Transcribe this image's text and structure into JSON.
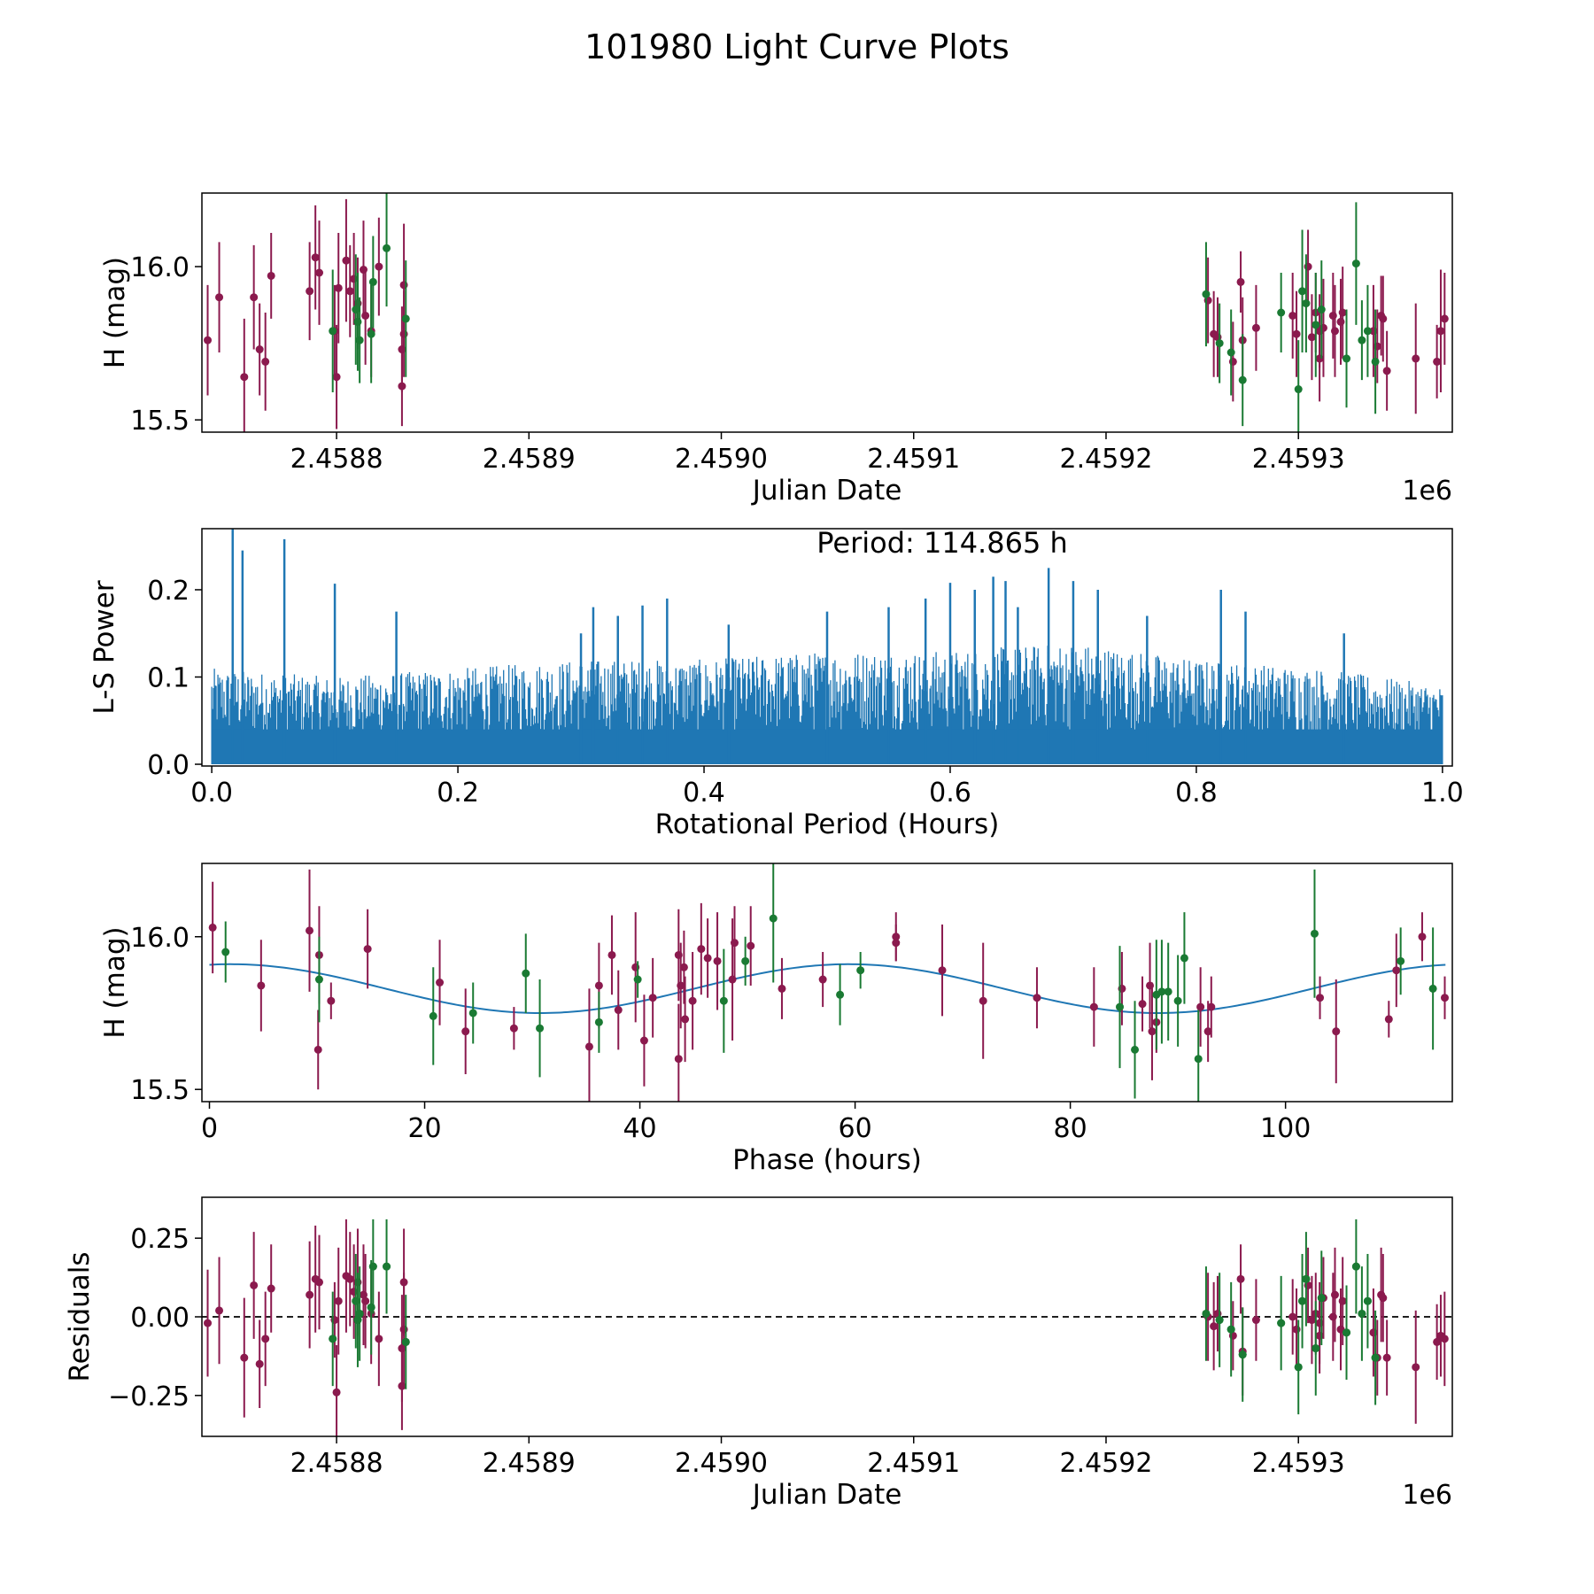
{
  "figure_title": "101980 Light Curve Plots",
  "colors": {
    "series_a": "#8b1a4e",
    "series_b": "#1a7a33",
    "periodogram": "#1f77b4",
    "fit": "#1f77b4"
  },
  "chart_data": [
    {
      "id": "lightcurve",
      "type": "scatter",
      "xlabel": "Julian Date",
      "ylabel": "H (mag)",
      "offset_label": "1e6",
      "xlim": [
        2.45873,
        2.45938
      ],
      "ylim": [
        15.46,
        16.24
      ],
      "xticks": [
        2.4588,
        2.4589,
        2.459,
        2.4591,
        2.4592,
        2.4593
      ],
      "xtick_labels": [
        "2.4588",
        "2.4589",
        "2.4590",
        "2.4591",
        "2.4592",
        "2.4593"
      ],
      "yticks": [
        15.5,
        16.0
      ],
      "ytick_labels": [
        "15.5",
        "16.0"
      ],
      "series": [
        {
          "name": "purple observations",
          "color_key": "series_a",
          "x": [
            2.458733,
            2.458739,
            2.458752,
            2.458757,
            2.45876,
            2.458763,
            2.458766,
            2.458786,
            2.458789,
            2.458791,
            2.458799,
            2.4588,
            2.458801,
            2.458805,
            2.458807,
            2.458809,
            2.458811,
            2.458814,
            2.458815,
            2.458818,
            2.458822,
            2.458834,
            2.458834,
            2.458835,
            2.458835,
            2.459253,
            2.459256,
            2.459258,
            2.459266,
            2.45927,
            2.459271,
            2.459278,
            2.459297,
            2.459299,
            2.459305,
            2.459307,
            2.459309,
            2.459311,
            2.459311,
            2.459313,
            2.459318,
            2.459319,
            2.459322,
            2.459323,
            2.459339,
            2.459341,
            2.459343,
            2.459344,
            2.459346,
            2.459361,
            2.459372,
            2.459374,
            2.459376
          ],
          "y": [
            15.76,
            15.9,
            15.64,
            15.9,
            15.73,
            15.69,
            15.97,
            15.92,
            16.03,
            15.98,
            15.79,
            15.64,
            15.93,
            16.02,
            15.92,
            15.96,
            15.88,
            15.99,
            15.84,
            15.79,
            16.0,
            15.73,
            15.61,
            15.78,
            15.94,
            15.89,
            15.78,
            15.77,
            15.69,
            15.95,
            15.76,
            15.8,
            15.84,
            15.78,
            16.0,
            15.77,
            15.85,
            15.7,
            15.79,
            15.8,
            15.84,
            15.79,
            15.82,
            15.85,
            15.79,
            15.74,
            15.84,
            15.83,
            15.66,
            15.7,
            15.69,
            15.79,
            15.83
          ],
          "err": [
            0.18,
            0.18,
            0.19,
            0.17,
            0.15,
            0.16,
            0.14,
            0.16,
            0.17,
            0.17,
            0.15,
            0.17,
            0.18,
            0.2,
            0.15,
            0.15,
            0.15,
            0.16,
            0.16,
            0.15,
            0.16,
            0.14,
            0.13,
            0.14,
            0.2,
            0.14,
            0.14,
            0.13,
            0.13,
            0.1,
            0.14,
            0.14,
            0.14,
            0.14,
            0.12,
            0.14,
            0.13,
            0.14,
            0.12,
            0.16,
            0.14,
            0.15,
            0.14,
            0.15,
            0.15,
            0.12,
            0.13,
            0.14,
            0.13,
            0.18,
            0.12,
            0.2,
            0.15
          ]
        },
        {
          "name": "green observations",
          "color_key": "series_b",
          "x": [
            2.458798,
            2.45881,
            2.458811,
            2.458812,
            2.458818,
            2.458819,
            2.458826,
            2.458836,
            2.459252,
            2.459259,
            2.459265,
            2.459271,
            2.459291,
            2.4593,
            2.459302,
            2.459304,
            2.459309,
            2.459312,
            2.459325,
            2.45933,
            2.459333,
            2.459336,
            2.45934
          ],
          "y": [
            15.79,
            15.86,
            15.82,
            15.76,
            15.78,
            15.95,
            16.06,
            15.83,
            15.91,
            15.75,
            15.72,
            15.63,
            15.85,
            15.6,
            15.92,
            15.88,
            15.81,
            15.86,
            15.7,
            16.01,
            15.76,
            15.79,
            15.69
          ],
          "err": [
            0.2,
            0.18,
            0.16,
            0.14,
            0.16,
            0.15,
            0.19,
            0.19,
            0.17,
            0.13,
            0.14,
            0.15,
            0.13,
            0.16,
            0.2,
            0.16,
            0.17,
            0.16,
            0.16,
            0.2,
            0.13,
            0.15,
            0.17
          ]
        }
      ]
    },
    {
      "id": "periodogram",
      "type": "line",
      "xlabel": "Rotational Period (Hours)",
      "ylabel": "L-S Power",
      "annotation": "Period: 114.865 h",
      "xlim": [
        -0.008,
        1.008
      ],
      "ylim": [
        -0.002,
        0.27
      ],
      "xticks": [
        0.0,
        0.2,
        0.4,
        0.6,
        0.8,
        1.0
      ],
      "xtick_labels": [
        "0.0",
        "0.2",
        "0.4",
        "0.6",
        "0.8",
        "1.0"
      ],
      "yticks": [
        0.0,
        0.1,
        0.2
      ],
      "ytick_labels": [
        "0.0",
        "0.1",
        "0.2"
      ],
      "noise_envelope": {
        "x": [
          0.0,
          0.1,
          0.2,
          0.3,
          0.4,
          0.5,
          0.6,
          0.7,
          0.8,
          0.9,
          1.0
        ],
        "y": [
          0.11,
          0.1,
          0.11,
          0.12,
          0.12,
          0.13,
          0.13,
          0.14,
          0.12,
          0.11,
          0.09
        ]
      },
      "peaks": {
        "x": [
          0.017,
          0.025,
          0.059,
          0.1,
          0.15,
          0.3,
          0.31,
          0.33,
          0.35,
          0.37,
          0.42,
          0.5,
          0.55,
          0.58,
          0.6,
          0.62,
          0.635,
          0.645,
          0.655,
          0.68,
          0.7,
          0.72,
          0.76,
          0.82,
          0.84,
          0.92
        ],
        "y": [
          0.27,
          0.245,
          0.258,
          0.207,
          0.175,
          0.15,
          0.18,
          0.17,
          0.182,
          0.19,
          0.16,
          0.175,
          0.18,
          0.19,
          0.208,
          0.2,
          0.215,
          0.21,
          0.18,
          0.225,
          0.21,
          0.2,
          0.17,
          0.2,
          0.175,
          0.15
        ]
      }
    },
    {
      "id": "phased",
      "type": "scatter",
      "xlabel": "Phase (hours)",
      "ylabel": "H (mag)",
      "xlim": [
        -0.7,
        115.5
      ],
      "ylim": [
        15.46,
        16.24
      ],
      "xticks": [
        0,
        20,
        40,
        60,
        80,
        100
      ],
      "xtick_labels": [
        "0",
        "20",
        "40",
        "60",
        "80",
        "100"
      ],
      "yticks": [
        15.5,
        16.0
      ],
      "ytick_labels": [
        "15.5",
        "16.0"
      ],
      "fit": {
        "mean": 15.83,
        "amplitude": 0.08,
        "period": 57.43,
        "phase_offset": 2.0,
        "x_end": 114.865
      },
      "series": [
        {
          "name": "purple observations",
          "color_key": "series_a",
          "x": [
            0.3,
            4.8,
            9.3,
            10.1,
            10.2,
            11.3,
            14.7,
            21.4,
            23.8,
            28.3,
            35.3,
            36.2,
            37.4,
            38.0,
            39.6,
            40.4,
            41.2,
            43.6,
            43.6,
            43.8,
            44.1,
            44.2,
            44.9,
            45.7,
            46.3,
            47.2,
            48.6,
            48.8,
            50.3,
            53.2,
            57.0,
            63.8,
            63.8,
            68.1,
            71.9,
            76.9,
            82.2,
            84.8,
            86.7,
            87.4,
            87.6,
            88.0,
            92.1,
            92.8,
            93.1,
            103.2,
            104.7,
            109.6,
            110.3,
            112.7,
            114.8
          ],
          "y": [
            16.03,
            15.84,
            16.02,
            15.63,
            15.94,
            15.79,
            15.96,
            15.85,
            15.69,
            15.7,
            15.64,
            15.84,
            15.94,
            15.76,
            15.9,
            15.66,
            15.8,
            15.6,
            15.94,
            15.84,
            15.9,
            15.73,
            15.79,
            15.96,
            15.93,
            15.92,
            15.86,
            15.98,
            15.97,
            15.83,
            15.86,
            16.0,
            15.98,
            15.89,
            15.79,
            15.8,
            15.77,
            15.83,
            15.78,
            15.84,
            15.69,
            15.72,
            15.77,
            15.69,
            15.77,
            15.8,
            15.69,
            15.73,
            15.89,
            16.0,
            15.8
          ],
          "err": [
            0.15,
            0.15,
            0.2,
            0.13,
            0.16,
            0.06,
            0.13,
            0.14,
            0.14,
            0.07,
            0.19,
            0.14,
            0.13,
            0.13,
            0.18,
            0.15,
            0.13,
            0.18,
            0.15,
            0.14,
            0.12,
            0.14,
            0.16,
            0.15,
            0.13,
            0.16,
            0.2,
            0.12,
            0.13,
            0.1,
            0.09,
            0.08,
            0.06,
            0.15,
            0.19,
            0.1,
            0.13,
            0.12,
            0.09,
            0.14,
            0.16,
            0.1,
            0.13,
            0.1,
            0.1,
            0.07,
            0.17,
            0.06,
            0.12,
            0.08,
            0.07
          ]
        },
        {
          "name": "green observations",
          "color_key": "series_b",
          "x": [
            1.5,
            10.2,
            20.8,
            24.5,
            29.4,
            30.7,
            36.2,
            39.8,
            47.8,
            49.8,
            52.4,
            58.6,
            60.5,
            84.6,
            86.0,
            88.0,
            88.5,
            89.1,
            90.0,
            90.6,
            91.9,
            102.7,
            110.7,
            113.7
          ],
          "y": [
            15.95,
            15.86,
            15.74,
            15.75,
            15.88,
            15.7,
            15.72,
            15.86,
            15.79,
            15.92,
            16.06,
            15.81,
            15.89,
            15.77,
            15.63,
            15.81,
            15.82,
            15.82,
            15.79,
            15.93,
            15.6,
            16.01,
            15.92,
            15.83
          ],
          "err": [
            0.1,
            0.14,
            0.16,
            0.1,
            0.13,
            0.16,
            0.1,
            0.06,
            0.17,
            0.08,
            0.21,
            0.1,
            0.06,
            0.2,
            0.16,
            0.18,
            0.17,
            0.16,
            0.15,
            0.15,
            0.16,
            0.21,
            0.11,
            0.2
          ]
        }
      ]
    },
    {
      "id": "residuals",
      "type": "scatter",
      "xlabel": "Julian Date",
      "ylabel": "Residuals",
      "offset_label": "1e6",
      "xlim": [
        2.45873,
        2.45938
      ],
      "ylim": [
        -0.38,
        0.38
      ],
      "xticks": [
        2.4588,
        2.4589,
        2.459,
        2.4591,
        2.4592,
        2.4593
      ],
      "xtick_labels": [
        "2.4588",
        "2.4589",
        "2.4590",
        "2.4591",
        "2.4592",
        "2.4593"
      ],
      "yticks": [
        -0.25,
        0.0,
        0.25
      ],
      "ytick_labels": [
        "−0.25",
        "0.00",
        "0.25"
      ],
      "zero_line": 0.0,
      "series": [
        {
          "name": "purple residuals",
          "color_key": "series_a",
          "x": [
            2.458733,
            2.458739,
            2.458752,
            2.458757,
            2.45876,
            2.458763,
            2.458766,
            2.458786,
            2.458789,
            2.458791,
            2.458799,
            2.4588,
            2.458801,
            2.458805,
            2.458807,
            2.458809,
            2.458811,
            2.458814,
            2.458815,
            2.458818,
            2.458822,
            2.458834,
            2.458834,
            2.458835,
            2.458835,
            2.459253,
            2.459256,
            2.459258,
            2.459266,
            2.45927,
            2.459271,
            2.459278,
            2.459297,
            2.459299,
            2.459305,
            2.459307,
            2.459309,
            2.459311,
            2.459311,
            2.459313,
            2.459318,
            2.459319,
            2.459322,
            2.459323,
            2.459339,
            2.459341,
            2.459343,
            2.459344,
            2.459346,
            2.459361,
            2.459372,
            2.459374,
            2.459376
          ],
          "y": [
            -0.02,
            0.02,
            -0.13,
            0.1,
            -0.15,
            -0.07,
            0.09,
            0.07,
            0.12,
            0.11,
            -0.01,
            -0.24,
            0.05,
            0.13,
            0.12,
            0.08,
            0.11,
            0.07,
            0.05,
            0.01,
            -0.07,
            -0.1,
            -0.22,
            0.11,
            -0.04,
            0.0,
            -0.03,
            0.01,
            -0.06,
            0.12,
            -0.11,
            -0.01,
            0.0,
            -0.04,
            0.1,
            -0.01,
            0.01,
            -0.02,
            -0.06,
            0.06,
            0.0,
            0.07,
            -0.04,
            0.05,
            -0.05,
            -0.13,
            0.07,
            0.06,
            -0.13,
            -0.16,
            -0.08,
            -0.06,
            -0.07
          ],
          "err": [
            0.17,
            0.17,
            0.19,
            0.17,
            0.14,
            0.15,
            0.14,
            0.17,
            0.17,
            0.15,
            0.12,
            0.15,
            0.17,
            0.18,
            0.15,
            0.15,
            0.17,
            0.16,
            0.15,
            0.16,
            0.15,
            0.17,
            0.14,
            0.17,
            0.18,
            0.14,
            0.14,
            0.12,
            0.11,
            0.11,
            0.14,
            0.13,
            0.12,
            0.13,
            0.12,
            0.14,
            0.13,
            0.13,
            0.12,
            0.13,
            0.14,
            0.15,
            0.13,
            0.14,
            0.14,
            0.12,
            0.15,
            0.14,
            0.12,
            0.18,
            0.12,
            0.13,
            0.15
          ]
        },
        {
          "name": "green residuals",
          "color_key": "series_b",
          "x": [
            2.458798,
            2.45881,
            2.458811,
            2.458812,
            2.458818,
            2.458819,
            2.458826,
            2.458836,
            2.459252,
            2.459259,
            2.459265,
            2.459271,
            2.459291,
            2.4593,
            2.459302,
            2.459304,
            2.459309,
            2.459312,
            2.459325,
            2.45933,
            2.459333,
            2.459336,
            2.45934
          ],
          "y": [
            -0.07,
            0.05,
            -0.01,
            0.01,
            0.03,
            0.16,
            0.16,
            -0.08,
            0.01,
            -0.01,
            -0.04,
            -0.12,
            -0.02,
            -0.16,
            0.05,
            0.12,
            -0.1,
            0.06,
            -0.05,
            0.16,
            0.01,
            0.05,
            -0.13
          ]
        }
      ]
    }
  ]
}
